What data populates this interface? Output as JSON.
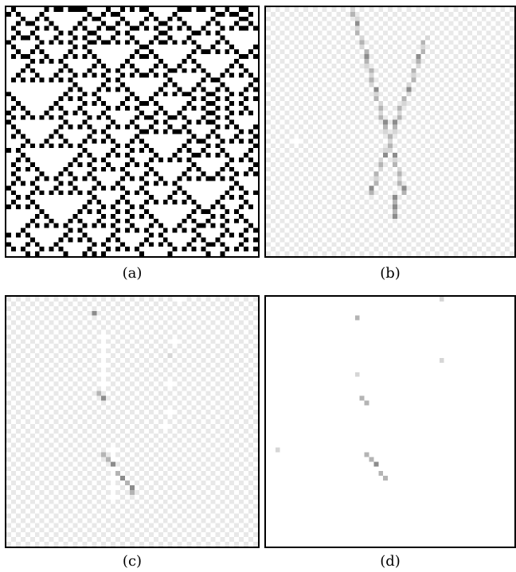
{
  "panels": [
    {
      "id": "a",
      "caption": "(a)",
      "content": "cellular-automaton-pattern"
    },
    {
      "id": "b",
      "caption": "(b)",
      "content": "v-shaped-trace-checker"
    },
    {
      "id": "c",
      "caption": "(c)",
      "content": "sparse-trace-checker"
    },
    {
      "id": "d",
      "caption": "(d)",
      "content": "sparse-dots-white"
    }
  ],
  "colors": {
    "black": "#000000",
    "white": "#ffffff",
    "checker_light": "#ffffff",
    "checker_dark": "#e8e8e8",
    "trace_dark": "#8c8c8c",
    "trace_mid": "#b4b4b4",
    "trace_light": "#d6d6d6"
  }
}
